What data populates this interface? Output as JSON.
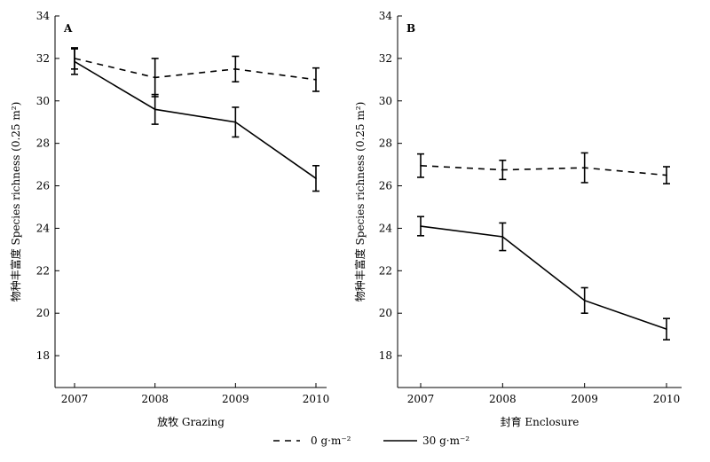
{
  "chart_data": [
    {
      "type": "line",
      "panel_label": "A",
      "x": [
        2007,
        2008,
        2009,
        2010
      ],
      "xlabel": "放牧 Grazing",
      "ylabel": "物种丰富度 Species richness (0.25 m²)",
      "ylim": [
        16.5,
        34
      ],
      "yticks": [
        18,
        20,
        22,
        24,
        26,
        28,
        30,
        32,
        34
      ],
      "grid": false,
      "series": [
        {
          "name": "0 g·m⁻²",
          "style": "dashed",
          "values": [
            32.0,
            31.1,
            31.5,
            31.0
          ],
          "errors": [
            0.5,
            0.9,
            0.6,
            0.55
          ]
        },
        {
          "name": "30 g·m⁻²",
          "style": "solid",
          "values": [
            31.85,
            29.6,
            29.0,
            26.35
          ],
          "errors": [
            0.6,
            0.7,
            0.7,
            0.6
          ]
        }
      ]
    },
    {
      "type": "line",
      "panel_label": "B",
      "x": [
        2007,
        2008,
        2009,
        2010
      ],
      "xlabel": "封育 Enclosure",
      "ylabel": "物种丰富度 Species richness (0.25 m²)",
      "ylim": [
        16.5,
        34
      ],
      "yticks": [
        18,
        20,
        22,
        24,
        26,
        28,
        30,
        32,
        34
      ],
      "grid": false,
      "series": [
        {
          "name": "0 g·m⁻²",
          "style": "dashed",
          "values": [
            26.95,
            26.75,
            26.85,
            26.5
          ],
          "errors": [
            0.55,
            0.45,
            0.7,
            0.4
          ]
        },
        {
          "name": "30 g·m⁻²",
          "style": "solid",
          "values": [
            24.1,
            23.6,
            20.6,
            19.25
          ],
          "errors": [
            0.45,
            0.65,
            0.6,
            0.5
          ]
        }
      ]
    }
  ],
  "legend": {
    "placement": "bottom-center",
    "items": [
      {
        "label": "0 g·m⁻²",
        "style": "dashed"
      },
      {
        "label": "30 g·m⁻²",
        "style": "solid"
      }
    ]
  },
  "colors": {
    "lines": "#000000",
    "background": "#ffffff"
  }
}
